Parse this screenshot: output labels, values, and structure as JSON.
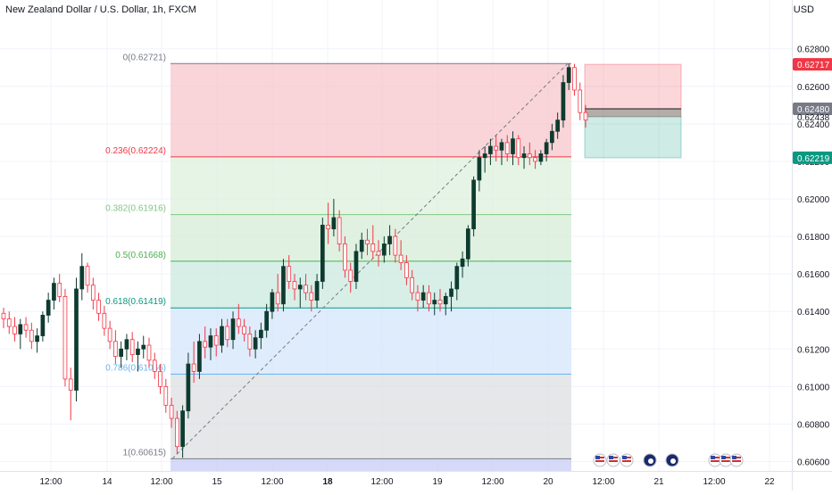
{
  "header": {
    "title": "New Zealand Dollar / U.S. Dollar, 1h, FXCM",
    "currency": "USD"
  },
  "chart_data": {
    "type": "candlestick",
    "symbol": "NZDUSD",
    "interval": "1h",
    "source": "FXCM",
    "y_axis": {
      "ticks": [
        0.628,
        0.626,
        0.624,
        0.622,
        0.62,
        0.618,
        0.616,
        0.614,
        0.612,
        0.61,
        0.608,
        0.606
      ],
      "tick_labels": [
        "0.62800",
        "0.62600",
        "0.62400",
        "0.62200",
        "0.62000",
        "0.61800",
        "0.61600",
        "0.61400",
        "0.61200",
        "0.61000",
        "0.60800",
        "0.60600"
      ],
      "range": [
        0.6055,
        0.6306
      ]
    },
    "x_axis": {
      "tick_labels": [
        "12:00",
        "14",
        "12:00",
        "15",
        "12:00",
        "18",
        "12:00",
        "19",
        "12:00",
        "20",
        "12:00",
        "21",
        "12:00",
        "22"
      ],
      "bold_labels": [
        "18"
      ]
    },
    "price_tags": [
      {
        "label": "0.62717",
        "value": 0.62717,
        "color": "#f23645"
      },
      {
        "label": "0.62480",
        "value": 0.6248,
        "color": "#787b86"
      },
      {
        "label": "0.62438",
        "value": 0.62438,
        "color": "#ffffff"
      },
      {
        "label": "0.62219",
        "value": 0.62219,
        "color": "#089981"
      }
    ],
    "fibonacci": [
      {
        "label": "0(0.62721)",
        "value": 0.62721,
        "color": "#787b86"
      },
      {
        "label": "0.236(0.62224)",
        "value": 0.62224,
        "color": "#f23645"
      },
      {
        "label": "0.382(0.61916)",
        "value": 0.61916,
        "color": "#81c784"
      },
      {
        "label": "0.5(0.61668)",
        "value": 0.61668,
        "color": "#4caf50"
      },
      {
        "label": "0.618(0.61419)",
        "value": 0.61419,
        "color": "#089981"
      },
      {
        "label": "0.786(0.61066)",
        "value": 0.61066,
        "color": "#64b5f6"
      },
      {
        "label": "1(0.60615)",
        "value": 0.60615,
        "color": "#787b86"
      }
    ],
    "fib_zone_colors": [
      "#f7c5cb",
      "#dcf0dc",
      "#d5ecd7",
      "#cbe9e0",
      "#d4e6fb",
      "#dedfe2"
    ],
    "position_tool": {
      "entry": 0.62438,
      "target": 0.62717,
      "stop": 0.62219
    },
    "candles": [
      [
        0.6139,
        0.6142,
        0.6131,
        0.6136
      ],
      [
        0.6136,
        0.614,
        0.6128,
        0.6132
      ],
      [
        0.6132,
        0.6137,
        0.6124,
        0.6128
      ],
      [
        0.6128,
        0.6136,
        0.612,
        0.6133
      ],
      [
        0.6133,
        0.6137,
        0.6126,
        0.613
      ],
      [
        0.613,
        0.6134,
        0.612,
        0.6124
      ],
      [
        0.6124,
        0.6131,
        0.6118,
        0.6127
      ],
      [
        0.6127,
        0.614,
        0.6124,
        0.6138
      ],
      [
        0.6138,
        0.615,
        0.6134,
        0.6146
      ],
      [
        0.6146,
        0.6158,
        0.6141,
        0.6155
      ],
      [
        0.6155,
        0.616,
        0.6145,
        0.6148
      ],
      [
        0.6148,
        0.6152,
        0.61,
        0.6104
      ],
      [
        0.6104,
        0.611,
        0.6082,
        0.6098
      ],
      [
        0.6098,
        0.6158,
        0.6092,
        0.6152
      ],
      [
        0.6152,
        0.6171,
        0.6146,
        0.6164
      ],
      [
        0.6164,
        0.6166,
        0.615,
        0.6154
      ],
      [
        0.6154,
        0.6158,
        0.6141,
        0.6146
      ],
      [
        0.6146,
        0.615,
        0.6135,
        0.6139
      ],
      [
        0.6139,
        0.6143,
        0.6127,
        0.6131
      ],
      [
        0.6131,
        0.6135,
        0.612,
        0.6124
      ],
      [
        0.6124,
        0.613,
        0.6112,
        0.6116
      ],
      [
        0.6116,
        0.6124,
        0.611,
        0.612
      ],
      [
        0.612,
        0.6128,
        0.6114,
        0.6125
      ],
      [
        0.6125,
        0.6129,
        0.6113,
        0.6117
      ],
      [
        0.6117,
        0.6124,
        0.6108,
        0.612
      ],
      [
        0.612,
        0.6127,
        0.6115,
        0.6122
      ],
      [
        0.6122,
        0.6126,
        0.611,
        0.6114
      ],
      [
        0.6114,
        0.6118,
        0.6104,
        0.6108
      ],
      [
        0.6108,
        0.6112,
        0.6096,
        0.61
      ],
      [
        0.61,
        0.6104,
        0.6086,
        0.609
      ],
      [
        0.609,
        0.6094,
        0.6078,
        0.6083
      ],
      [
        0.6083,
        0.6087,
        0.6064,
        0.6068
      ],
      [
        0.6068,
        0.609,
        0.6062,
        0.6087
      ],
      [
        0.6087,
        0.6118,
        0.6083,
        0.6112
      ],
      [
        0.6112,
        0.6124,
        0.6102,
        0.6108
      ],
      [
        0.6108,
        0.6128,
        0.6104,
        0.6124
      ],
      [
        0.6124,
        0.6132,
        0.6115,
        0.6121
      ],
      [
        0.6121,
        0.6131,
        0.6114,
        0.6127
      ],
      [
        0.6127,
        0.6131,
        0.6116,
        0.6122
      ],
      [
        0.6122,
        0.6136,
        0.6118,
        0.6132
      ],
      [
        0.6132,
        0.6136,
        0.6121,
        0.6125
      ],
      [
        0.6125,
        0.614,
        0.612,
        0.6136
      ],
      [
        0.6136,
        0.6144,
        0.6128,
        0.6132
      ],
      [
        0.6132,
        0.6136,
        0.6124,
        0.6128
      ],
      [
        0.6128,
        0.6132,
        0.6116,
        0.612
      ],
      [
        0.612,
        0.613,
        0.6115,
        0.6126
      ],
      [
        0.6126,
        0.6134,
        0.612,
        0.613
      ],
      [
        0.613,
        0.6144,
        0.6126,
        0.614
      ],
      [
        0.614,
        0.6152,
        0.6136,
        0.615
      ],
      [
        0.615,
        0.616,
        0.614,
        0.6144
      ],
      [
        0.6144,
        0.6168,
        0.614,
        0.6164
      ],
      [
        0.6164,
        0.617,
        0.6152,
        0.6156
      ],
      [
        0.6156,
        0.616,
        0.6146,
        0.6152
      ],
      [
        0.6152,
        0.6158,
        0.6142,
        0.6154
      ],
      [
        0.6154,
        0.616,
        0.6146,
        0.615
      ],
      [
        0.615,
        0.6154,
        0.614,
        0.6146
      ],
      [
        0.6146,
        0.616,
        0.6142,
        0.6156
      ],
      [
        0.6156,
        0.619,
        0.6152,
        0.6186
      ],
      [
        0.6186,
        0.6198,
        0.6176,
        0.6184
      ],
      [
        0.6184,
        0.62,
        0.618,
        0.619
      ],
      [
        0.619,
        0.6194,
        0.6172,
        0.6176
      ],
      [
        0.6176,
        0.618,
        0.6158,
        0.6162
      ],
      [
        0.6162,
        0.6166,
        0.615,
        0.6156
      ],
      [
        0.6156,
        0.6176,
        0.6152,
        0.6172
      ],
      [
        0.6172,
        0.6182,
        0.6168,
        0.6178
      ],
      [
        0.6178,
        0.6184,
        0.617,
        0.6176
      ],
      [
        0.6176,
        0.6186,
        0.6168,
        0.6172
      ],
      [
        0.6172,
        0.6178,
        0.6164,
        0.617
      ],
      [
        0.617,
        0.618,
        0.6166,
        0.6176
      ],
      [
        0.6176,
        0.6186,
        0.617,
        0.618
      ],
      [
        0.618,
        0.6184,
        0.6166,
        0.617
      ],
      [
        0.617,
        0.6178,
        0.6162,
        0.6166
      ],
      [
        0.6166,
        0.617,
        0.6154,
        0.6158
      ],
      [
        0.6158,
        0.6162,
        0.6146,
        0.615
      ],
      [
        0.615,
        0.6154,
        0.614,
        0.6146
      ],
      [
        0.6146,
        0.6154,
        0.6142,
        0.615
      ],
      [
        0.615,
        0.6154,
        0.614,
        0.6144
      ],
      [
        0.6144,
        0.615,
        0.6138,
        0.6146
      ],
      [
        0.6146,
        0.6152,
        0.614,
        0.6144
      ],
      [
        0.6144,
        0.615,
        0.6138,
        0.6148
      ],
      [
        0.6148,
        0.6156,
        0.614,
        0.6152
      ],
      [
        0.6152,
        0.6166,
        0.6146,
        0.6164
      ],
      [
        0.6164,
        0.6172,
        0.6158,
        0.6168
      ],
      [
        0.6168,
        0.6186,
        0.6164,
        0.6184
      ],
      [
        0.6184,
        0.6212,
        0.618,
        0.621
      ],
      [
        0.621,
        0.6226,
        0.6204,
        0.6222
      ],
      [
        0.6222,
        0.6228,
        0.6214,
        0.6224
      ],
      [
        0.6224,
        0.6232,
        0.6218,
        0.6228
      ],
      [
        0.6228,
        0.6234,
        0.622,
        0.6226
      ],
      [
        0.6226,
        0.6232,
        0.6218,
        0.623
      ],
      [
        0.623,
        0.6234,
        0.622,
        0.6224
      ],
      [
        0.6224,
        0.6236,
        0.6218,
        0.6232
      ],
      [
        0.6232,
        0.6234,
        0.6218,
        0.6222
      ],
      [
        0.6222,
        0.6228,
        0.6216,
        0.6224
      ],
      [
        0.6224,
        0.623,
        0.6218,
        0.6222
      ],
      [
        0.6222,
        0.6226,
        0.6216,
        0.622
      ],
      [
        0.622,
        0.6226,
        0.6218,
        0.6224
      ],
      [
        0.6224,
        0.6232,
        0.622,
        0.623
      ],
      [
        0.623,
        0.624,
        0.6226,
        0.6236
      ],
      [
        0.6236,
        0.6246,
        0.6232,
        0.6242
      ],
      [
        0.6242,
        0.6266,
        0.6238,
        0.6262
      ],
      [
        0.6262,
        0.6272,
        0.6258,
        0.627
      ],
      [
        0.627,
        0.6272,
        0.6255,
        0.6258
      ],
      [
        0.6258,
        0.6262,
        0.6242,
        0.6246
      ],
      [
        0.6246,
        0.625,
        0.6238,
        0.6242
      ]
    ]
  },
  "event_icons": [
    {
      "name": "us-flag-icon"
    },
    {
      "name": "us-flag-icon"
    },
    {
      "name": "us-flag-icon"
    },
    {
      "name": "nz-flag-icon"
    },
    {
      "name": "nz-flag-icon"
    },
    {
      "name": "us-flag-icon"
    },
    {
      "name": "us-flag-icon"
    },
    {
      "name": "us-flag-icon"
    }
  ]
}
